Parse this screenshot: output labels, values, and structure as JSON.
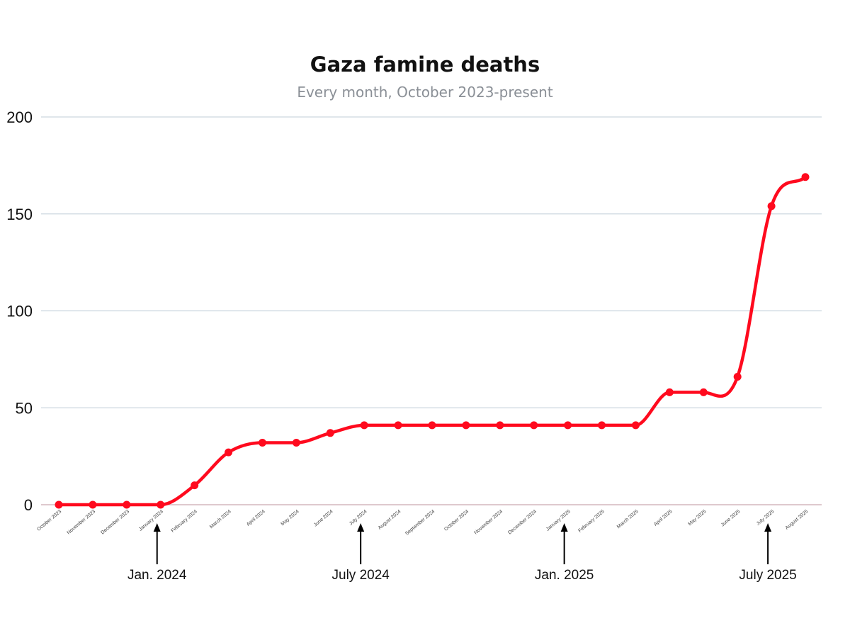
{
  "chart_data": {
    "type": "line",
    "title": "Gaza famine deaths",
    "subtitle": "Every month, October 2023-present",
    "xlabel": "",
    "ylabel": "",
    "ylim": [
      0,
      200
    ],
    "yticks": [
      "0",
      "50",
      "100",
      "150",
      "200"
    ],
    "grid": true,
    "smooth": true,
    "color": "#ff0a1e",
    "categories": [
      "October 2023",
      "November 2023",
      "December 2023",
      "January 2024",
      "February 2024",
      "March 2024",
      "April 2024",
      "May 2024",
      "June 2024",
      "July 2024",
      "August 2024",
      "September 2024",
      "October 2024",
      "November 2024",
      "December 2024",
      "January 2025",
      "February 2025",
      "March 2025",
      "April 2025",
      "May 2025",
      "June 2025",
      "July 2025",
      "August 2025"
    ],
    "series": [
      {
        "values": [
          0,
          0,
          0,
          0,
          10,
          27,
          32,
          32,
          37,
          41,
          41,
          41,
          41,
          41,
          41,
          41,
          41,
          41,
          58,
          58,
          66,
          154,
          169
        ]
      }
    ],
    "annotations": [
      {
        "label": "Jan. 2024",
        "category": "January 2024"
      },
      {
        "label": "July 2024",
        "category": "July 2024"
      },
      {
        "label": "Jan. 2025",
        "category": "January 2025"
      },
      {
        "label": "July 2025",
        "category": "July 2025"
      }
    ]
  }
}
